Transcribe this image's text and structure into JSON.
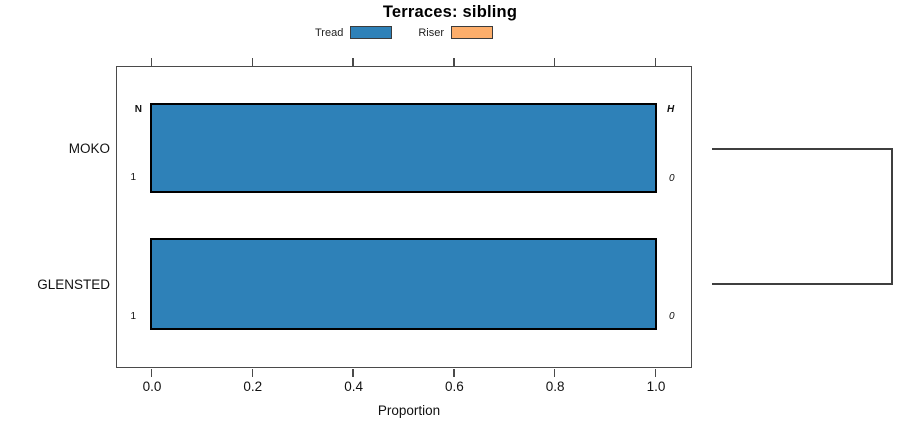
{
  "chart_data": {
    "type": "bar",
    "orientation": "horizontal",
    "title": "Terraces: sibling",
    "xlabel": "Proportion",
    "xlim": [
      -0.07,
      1.07
    ],
    "grid": false,
    "x_ticks": [
      0.0,
      0.2,
      0.4,
      0.6,
      0.8,
      1.0
    ],
    "x_tick_labels": [
      "0.0",
      "0.2",
      "0.4",
      "0.6",
      "0.8",
      "1.0"
    ],
    "categories": [
      "MOKO",
      "GLENSTED"
    ],
    "series": [
      {
        "name": "Tread",
        "color": "#2e81b8",
        "values": [
          1.0,
          1.0
        ]
      },
      {
        "name": "Riser",
        "color": "#fdae6b",
        "values": [
          0.0,
          0.0
        ]
      }
    ],
    "legend": {
      "position": "top",
      "entries": [
        {
          "label": "Tread",
          "color": "#2e81b8"
        },
        {
          "label": "Riser",
          "color": "#fdae6b"
        }
      ]
    },
    "row_labels": [
      {
        "category": "MOKO",
        "top_left": "N",
        "bottom_left": "1",
        "top_right": "H",
        "bottom_right": "0"
      },
      {
        "category": "GLENSTED",
        "bottom_left": "1",
        "bottom_right": "0"
      }
    ],
    "right_bracket": {
      "connects": [
        "MOKO",
        "GLENSTED"
      ]
    },
    "colors": {
      "bar_border": "#000000",
      "axis": "#4a4a4a",
      "bracket": "#3f3f3f"
    }
  }
}
